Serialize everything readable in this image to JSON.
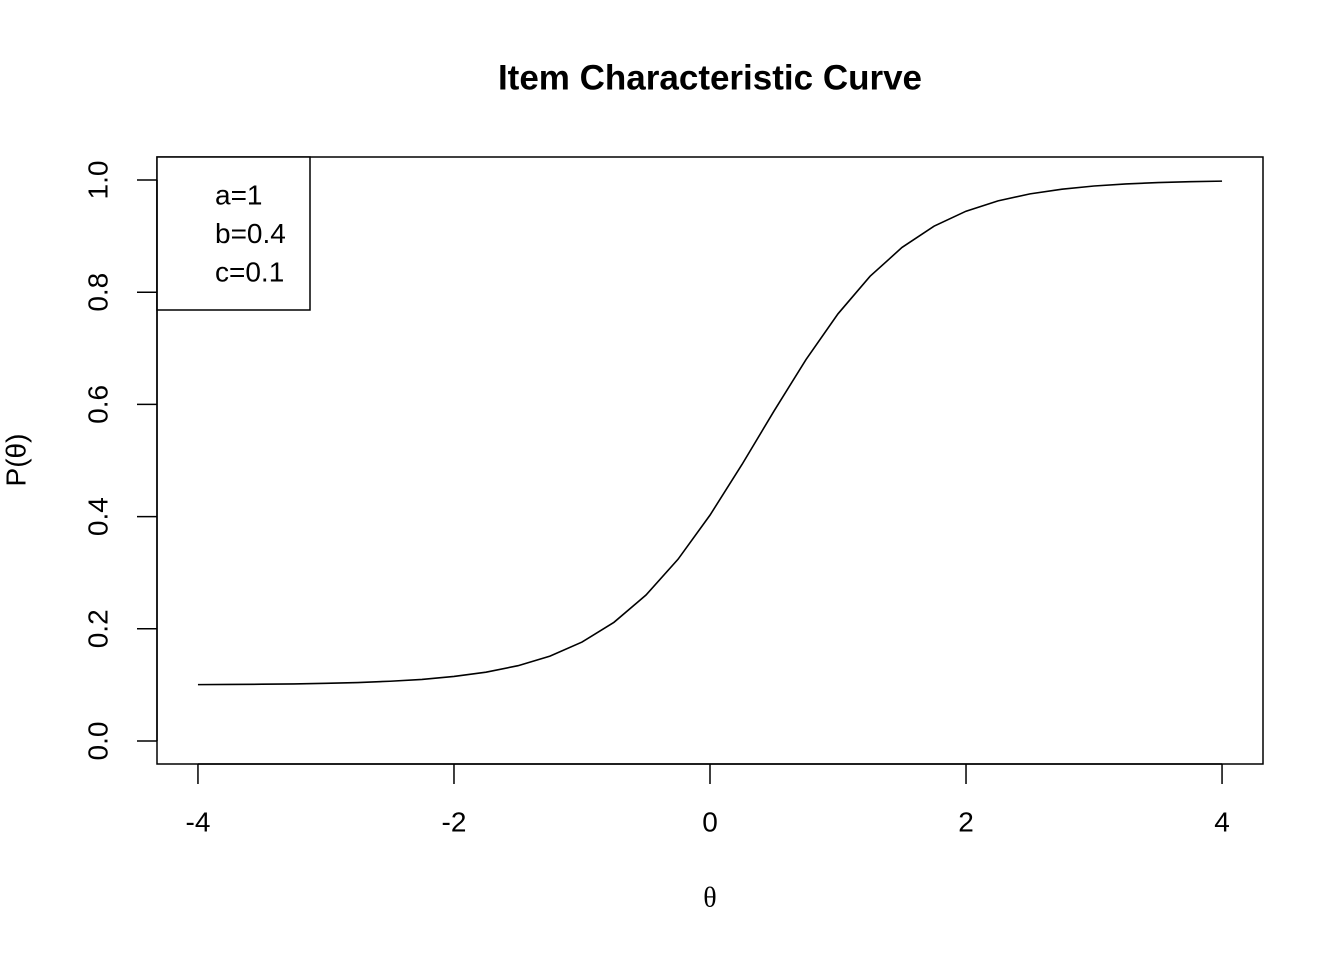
{
  "chart_data": {
    "type": "line",
    "title": "Item Characteristic Curve",
    "x_label": "θ",
    "y_label": "P(θ)",
    "annotations": [
      "a=1",
      "b=0.4",
      "c=0.1"
    ],
    "x": [
      -4,
      -3.75,
      -3.5,
      -3.25,
      -3,
      -2.75,
      -2.5,
      -2.25,
      -2,
      -1.75,
      -1.5,
      -1.25,
      -1,
      -0.75,
      -0.5,
      -0.25,
      0,
      0.25,
      0.5,
      0.75,
      1,
      1.25,
      1.5,
      1.75,
      2,
      2.25,
      2.5,
      2.75,
      3,
      3.25,
      3.5,
      3.75,
      4
    ],
    "values": [
      0.1005,
      0.1008,
      0.1012,
      0.1018,
      0.1028,
      0.1042,
      0.1065,
      0.1098,
      0.115,
      0.1227,
      0.1342,
      0.1513,
      0.1763,
      0.2116,
      0.2602,
      0.3239,
      0.4026,
      0.4929,
      0.5881,
      0.68,
      0.7615,
      0.8283,
      0.8798,
      0.9177,
      0.9444,
      0.9628,
      0.9753,
      0.9837,
      0.9893,
      0.993,
      0.9954,
      0.997,
      0.998
    ],
    "color": "#000000",
    "xlim": [
      -4.32,
      4.32
    ],
    "ylim": [
      -0.041,
      1.041
    ],
    "xticks": [
      -4,
      -2,
      0,
      2,
      4
    ],
    "yticks": [
      {
        "value": 0,
        "label": "0.0"
      },
      0.2,
      0.4,
      0.6,
      0.8,
      {
        "value": 1,
        "label": "1.0"
      }
    ]
  }
}
